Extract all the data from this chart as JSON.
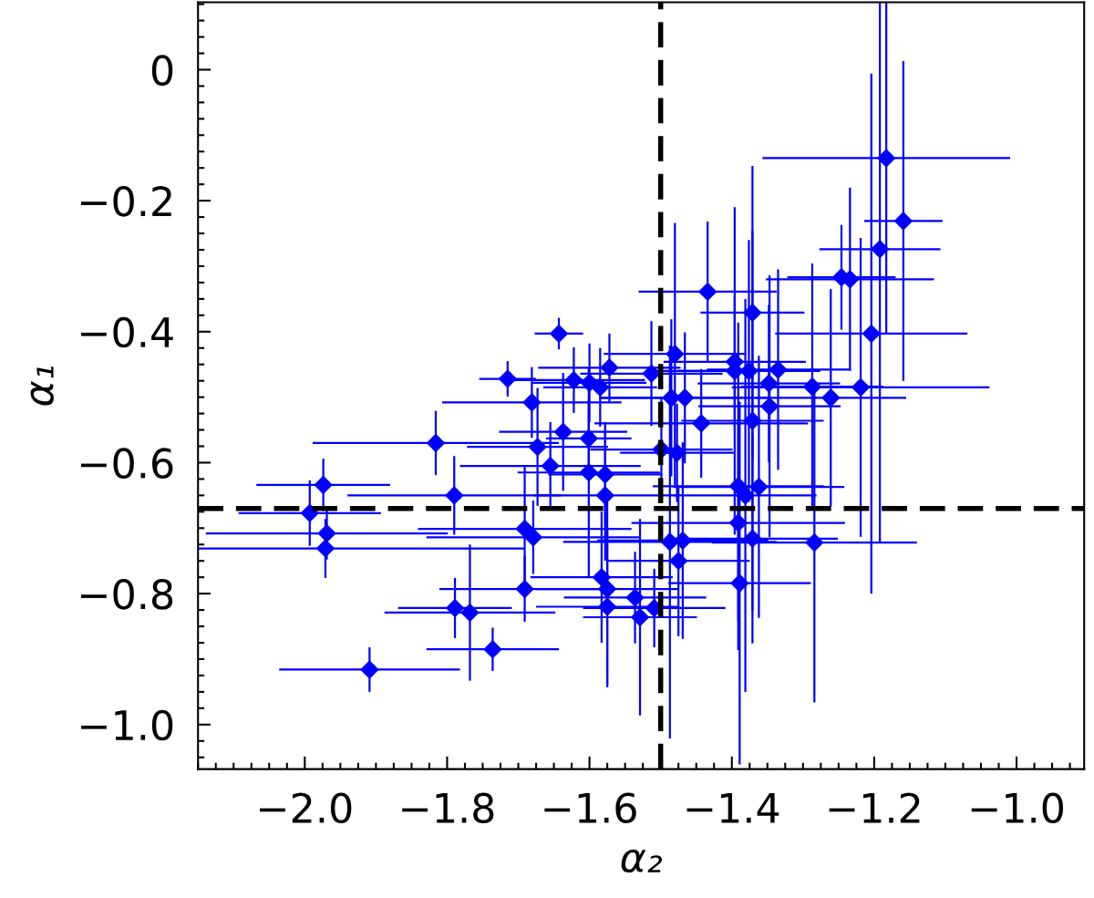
{
  "chart_data": {
    "type": "scatter",
    "xlabel": "α₂",
    "ylabel": "α₁",
    "marker": "diamond",
    "grid": false,
    "legend": false,
    "xlim": [
      -2.15,
      -0.905
    ],
    "ylim": [
      -1.068,
      0.103
    ],
    "xticks": [
      {
        "value": -2.0,
        "label": "−2.0"
      },
      {
        "value": -1.8,
        "label": "−1.8"
      },
      {
        "value": -1.6,
        "label": "−1.6"
      },
      {
        "value": -1.4,
        "label": "−1.4"
      },
      {
        "value": -1.2,
        "label": "−1.2"
      },
      {
        "value": -1.0,
        "label": "−1.0"
      }
    ],
    "yticks": [
      0,
      {
        "value": -0.2,
        "label": "−0.2"
      },
      {
        "value": -0.4,
        "label": "−0.4"
      },
      {
        "value": -0.6,
        "label": "−0.6"
      },
      {
        "value": -0.8,
        "label": "−0.8"
      },
      {
        "value": -1.0,
        "label": "−1.0"
      }
    ],
    "ref_lines": [
      {
        "axis": "x",
        "value": -1.5,
        "color": "#000000",
        "line_style": "dashed"
      },
      {
        "axis": "y",
        "value": -0.67,
        "color": "#000000",
        "line_style": "dashed"
      }
    ],
    "series": [
      {
        "color": "#0000ff",
        "x": [
          -1.643,
          -1.715,
          -1.572,
          -1.622,
          -1.6,
          -1.585,
          -1.434,
          -1.183,
          -1.159,
          -1.192,
          -1.204,
          -1.246,
          -1.234,
          -1.371,
          -1.219,
          -1.261,
          -1.287,
          -1.284,
          -1.347,
          -1.335,
          -1.443,
          -1.371,
          -1.499,
          -1.477,
          -1.391,
          -1.381,
          -1.362,
          -1.391,
          -1.487,
          -1.469,
          -1.371,
          -1.475,
          -1.389,
          -1.509,
          -1.529,
          -1.513,
          -1.396,
          -1.376,
          -1.485,
          -1.466,
          -1.396,
          -1.48,
          -1.348,
          -1.681,
          -1.637,
          -1.601,
          -1.673,
          -1.655,
          -1.816,
          -1.601,
          -1.578,
          -1.578,
          -1.79,
          -1.974,
          -1.993,
          -1.969,
          -1.971,
          -1.691,
          -1.679,
          -1.691,
          -1.789,
          -1.768,
          -1.736,
          -1.909,
          -1.583,
          -1.575,
          -1.575,
          -1.536
        ],
        "values": [
          -0.403,
          -0.472,
          -0.455,
          -0.474,
          -0.478,
          -0.485,
          -0.339,
          -0.135,
          -0.231,
          -0.274,
          -0.403,
          -0.317,
          -0.32,
          -0.371,
          -0.485,
          -0.501,
          -0.484,
          -0.722,
          -0.514,
          -0.458,
          -0.54,
          -0.536,
          -0.58,
          -0.585,
          -0.636,
          -0.65,
          -0.637,
          -0.692,
          -0.721,
          -0.719,
          -0.716,
          -0.75,
          -0.784,
          -0.822,
          -0.836,
          -0.464,
          -0.46,
          -0.46,
          -0.501,
          -0.501,
          -0.446,
          -0.434,
          -0.479,
          -0.508,
          -0.553,
          -0.563,
          -0.576,
          -0.605,
          -0.57,
          -0.615,
          -0.618,
          -0.65,
          -0.65,
          -0.634,
          -0.677,
          -0.708,
          -0.731,
          -0.701,
          -0.714,
          -0.793,
          -0.822,
          -0.829,
          -0.885,
          -0.916,
          -0.775,
          -0.793,
          -0.82,
          -0.806
        ],
        "xerrors": [
          0.034,
          0.04,
          0.1,
          0.1,
          0.08,
          0.08,
          0.097,
          0.174,
          0.055,
          0.085,
          0.135,
          0.076,
          0.118,
          0.073,
          0.181,
          0.106,
          0.1,
          0.144,
          0.1,
          0.1,
          0.15,
          0.1,
          0.1,
          0.08,
          0.12,
          0.1,
          0.12,
          0.15,
          0.15,
          0.12,
          0.12,
          0.1,
          0.1,
          0.1,
          0.08,
          0.1,
          0.12,
          0.1,
          0.1,
          0.12,
          0.1,
          0.1,
          0.1,
          0.126,
          0.09,
          0.06,
          0.099,
          0.127,
          0.173,
          0.1,
          0.08,
          0.1,
          0.15,
          0.094,
          0.1,
          0.17,
          [
            -2.15,
            -1.691
          ],
          0.15,
          0.15,
          0.12,
          0.08,
          0.12,
          0.093,
          0.127,
          0.1,
          0.1,
          0.1,
          0.1
        ],
        "errors": [
          0.024,
          0.027,
          0.052,
          0.05,
          0.06,
          0.06,
          0.107,
          [
            -0.403,
            0.103
          ],
          0.244,
          [
            -0.721,
            0.103
          ],
          0.397,
          0.08,
          0.14,
          0.224,
          0.228,
          0.166,
          0.188,
          0.244,
          0.2,
          0.153,
          0.083,
          0.29,
          0.08,
          0.075,
          0.25,
          0.3,
          0.2,
          0.15,
          0.3,
          0.15,
          0.16,
          0.115,
          0.277,
          0.06,
          0.15,
          0.08,
          0.25,
          0.2,
          0.12,
          0.1,
          0.1,
          0.2,
          0.12,
          0.054,
          0.09,
          0.06,
          0.09,
          0.067,
          0.049,
          0.16,
          0.08,
          0.1,
          0.06,
          0.04,
          0.05,
          0.04,
          0.045,
          0.097,
          0.056,
          0.05,
          0.046,
          0.104,
          0.033,
          0.034,
          0.1,
          0.15,
          0.12,
          0.07
        ]
      }
    ]
  }
}
